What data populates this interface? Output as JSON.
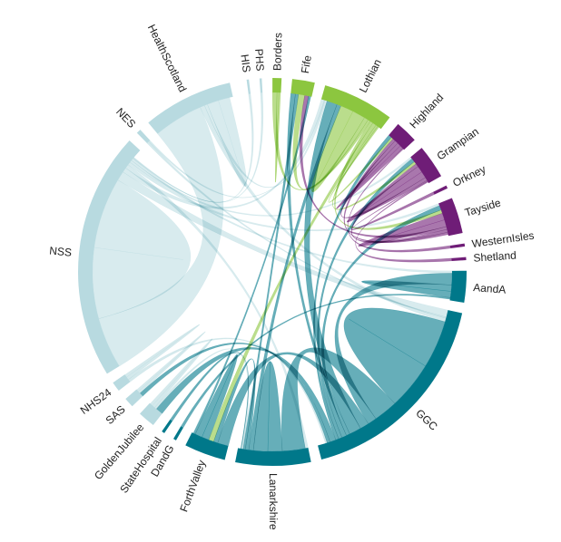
{
  "chart_data": {
    "type": "chord",
    "title": "",
    "groups": [
      {
        "name": "HIS",
        "share": 0.3,
        "color": "#b8dae0"
      },
      {
        "name": "PHS",
        "share": 0.3,
        "color": "#b8dae0"
      },
      {
        "name": "Borders",
        "share": 1.2,
        "color": "#8cc63f"
      },
      {
        "name": "Fife",
        "share": 3.0,
        "color": "#8cc63f"
      },
      {
        "name": "Lothian",
        "share": 9.5,
        "color": "#8cc63f"
      },
      {
        "name": "Highland",
        "share": 3.0,
        "color": "#6f1d77"
      },
      {
        "name": "Grampian",
        "share": 4.5,
        "color": "#6f1d77"
      },
      {
        "name": "Orkney",
        "share": 0.4,
        "color": "#6f1d77"
      },
      {
        "name": "Tayside",
        "share": 4.8,
        "color": "#6f1d77"
      },
      {
        "name": "WesternIsles",
        "share": 0.4,
        "color": "#6f1d77"
      },
      {
        "name": "Shetland",
        "share": 0.4,
        "color": "#6f1d77"
      },
      {
        "name": "AandA",
        "share": 4.2,
        "color": "#00788a"
      },
      {
        "name": "GGC",
        "share": 28.0,
        "color": "#00788a"
      },
      {
        "name": "Lanarkshire",
        "share": 10.0,
        "color": "#00788a"
      },
      {
        "name": "ForthValley",
        "share": 5.5,
        "color": "#00788a"
      },
      {
        "name": "DandG",
        "share": 0.4,
        "color": "#00788a"
      },
      {
        "name": "StateHospital",
        "share": 0.4,
        "color": "#00788a"
      },
      {
        "name": "GoldenJubilee",
        "share": 2.3,
        "color": "#b8dae0"
      },
      {
        "name": "SAS",
        "share": 1.3,
        "color": "#b8dae0"
      },
      {
        "name": "NHS24",
        "share": 1.3,
        "color": "#b8dae0"
      },
      {
        "name": "NSS",
        "share": 33.0,
        "color": "#b8dae0"
      },
      {
        "name": "NES",
        "share": 0.6,
        "color": "#b8dae0"
      },
      {
        "name": "HealthScotland",
        "share": 12.0,
        "color": "#b8dae0"
      }
    ],
    "ribbons": [
      {
        "source": "NSS",
        "target": "HealthScotland",
        "value": 6.5
      },
      {
        "source": "NSS",
        "target": "NSS",
        "value": 9.0
      },
      {
        "source": "NSS",
        "target": "GGC",
        "value": 1.2
      },
      {
        "source": "NSS",
        "target": "Lothian",
        "value": 0.6
      },
      {
        "source": "NSS",
        "target": "Lanarkshire",
        "value": 0.5
      },
      {
        "source": "NSS",
        "target": "Tayside",
        "value": 0.4
      },
      {
        "source": "NSS",
        "target": "Grampian",
        "value": 0.3
      },
      {
        "source": "NSS",
        "target": "AandA",
        "value": 0.3
      },
      {
        "source": "NES",
        "target": "GGC",
        "value": 0.2
      },
      {
        "source": "NES",
        "target": "Lothian",
        "value": 0.15
      },
      {
        "source": "HealthScotland",
        "target": "GGC",
        "value": 0.6
      },
      {
        "source": "HealthScotland",
        "target": "Lothian",
        "value": 0.4
      },
      {
        "source": "HealthScotland",
        "target": "HealthScotland",
        "value": 1.5
      },
      {
        "source": "GGC",
        "target": "GGC",
        "value": 8.0
      },
      {
        "source": "GGC",
        "target": "Lanarkshire",
        "value": 4.0
      },
      {
        "source": "GGC",
        "target": "AandA",
        "value": 1.5
      },
      {
        "source": "GGC",
        "target": "ForthValley",
        "value": 1.5
      },
      {
        "source": "GGC",
        "target": "Lothian",
        "value": 2.0
      },
      {
        "source": "GGC",
        "target": "Fife",
        "value": 0.6
      },
      {
        "source": "GGC",
        "target": "Tayside",
        "value": 0.8
      },
      {
        "source": "GGC",
        "target": "Grampian",
        "value": 0.6
      },
      {
        "source": "GGC",
        "target": "Highland",
        "value": 0.5
      },
      {
        "source": "GGC",
        "target": "GoldenJubilee",
        "value": 1.0
      },
      {
        "source": "GGC",
        "target": "SAS",
        "value": 0.5
      },
      {
        "source": "Lanarkshire",
        "target": "Lanarkshire",
        "value": 2.5
      },
      {
        "source": "Lanarkshire",
        "target": "Lothian",
        "value": 0.8
      },
      {
        "source": "Lanarkshire",
        "target": "ForthValley",
        "value": 0.6
      },
      {
        "source": "Lanarkshire",
        "target": "Fife",
        "value": 0.4
      },
      {
        "source": "Lothian",
        "target": "Lothian",
        "value": 2.5
      },
      {
        "source": "Lothian",
        "target": "Fife",
        "value": 0.8
      },
      {
        "source": "Lothian",
        "target": "Borders",
        "value": 0.5
      },
      {
        "source": "Lothian",
        "target": "Tayside",
        "value": 0.6
      },
      {
        "source": "Lothian",
        "target": "ForthValley",
        "value": 0.7
      },
      {
        "source": "Lothian",
        "target": "Grampian",
        "value": 0.4
      },
      {
        "source": "Lothian",
        "target": "Highland",
        "value": 0.3
      },
      {
        "source": "Tayside",
        "target": "Tayside",
        "value": 1.2
      },
      {
        "source": "Tayside",
        "target": "Fife",
        "value": 0.5
      },
      {
        "source": "Tayside",
        "target": "Grampian",
        "value": 0.5
      },
      {
        "source": "Tayside",
        "target": "Highland",
        "value": 0.4
      },
      {
        "source": "Grampian",
        "target": "Grampian",
        "value": 1.0
      },
      {
        "source": "Grampian",
        "target": "Highland",
        "value": 0.5
      },
      {
        "source": "Grampian",
        "target": "Orkney",
        "value": 0.15
      },
      {
        "source": "Grampian",
        "target": "Shetland",
        "value": 0.15
      },
      {
        "source": "Highland",
        "target": "Highland",
        "value": 0.5
      },
      {
        "source": "Highland",
        "target": "WesternIsles",
        "value": 0.15
      },
      {
        "source": "AandA",
        "target": "AandA",
        "value": 0.8
      },
      {
        "source": "AandA",
        "target": "DandG",
        "value": 0.2
      },
      {
        "source": "ForthValley",
        "target": "ForthValley",
        "value": 1.0
      },
      {
        "source": "ForthValley",
        "target": "Fife",
        "value": 0.3
      },
      {
        "source": "Borders",
        "target": "Borders",
        "value": 0.2
      },
      {
        "source": "GoldenJubilee",
        "target": "Lanarkshire",
        "value": 0.3
      },
      {
        "source": "GoldenJubilee",
        "target": "GoldenJubilee",
        "value": 0.4
      },
      {
        "source": "NHS24",
        "target": "GGC",
        "value": 0.3
      },
      {
        "source": "NHS24",
        "target": "NHS24",
        "value": 0.3
      },
      {
        "source": "SAS",
        "target": "SAS",
        "value": 0.3
      },
      {
        "source": "StateHospital",
        "target": "Lanarkshire",
        "value": 0.1
      },
      {
        "source": "PHS",
        "target": "NSS",
        "value": 0.1
      },
      {
        "source": "HIS",
        "target": "NSS",
        "value": 0.1
      }
    ]
  }
}
